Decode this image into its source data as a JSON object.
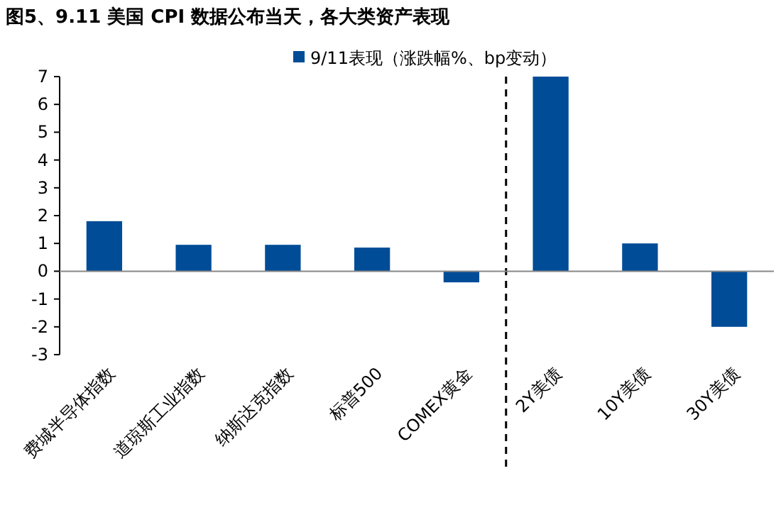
{
  "chart_data": {
    "type": "bar",
    "title": "图5、9.11 美国 CPI 数据公布当天，各大类资产表现",
    "categories": [
      "费城半导体指数",
      "道琼斯工业指数",
      "纳斯达克指数",
      "标普500",
      "COMEX黄金",
      "2Y美债",
      "10Y美债",
      "30Y美债"
    ],
    "series": [
      {
        "name": "9/11表现（涨跌幅%、bp变动）",
        "color": "#004c97",
        "values": [
          1.8,
          0.95,
          0.95,
          0.85,
          -0.4,
          7,
          1,
          -2
        ]
      }
    ],
    "ylim": [
      -3,
      7
    ],
    "yticks": [
      -3,
      -2,
      -1,
      0,
      1,
      2,
      3,
      4,
      5,
      6,
      7
    ],
    "legend": "top"
  }
}
